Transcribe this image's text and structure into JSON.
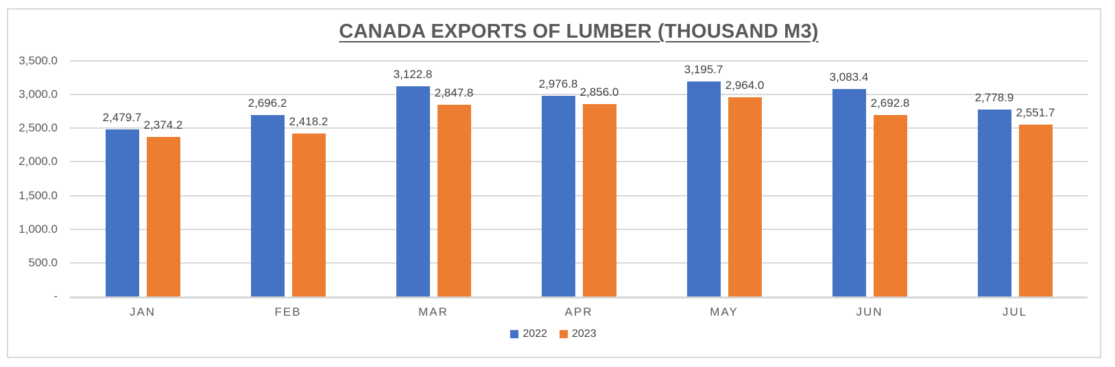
{
  "chart_data": {
    "type": "bar",
    "title": "CANADA EXPORTS OF LUMBER (THOUSAND M3)",
    "categories": [
      "JAN",
      "FEB",
      "MAR",
      "APR",
      "MAY",
      "JUN",
      "JUL"
    ],
    "series": [
      {
        "name": "2022",
        "color": "#4472C4",
        "values": [
          2479.7,
          2696.2,
          3122.8,
          2976.8,
          3195.7,
          3083.4,
          2778.9
        ],
        "labels": [
          "2,479.7",
          "2,696.2",
          "3,122.8",
          "2,976.8",
          "3,195.7",
          "3,083.4",
          "2,778.9"
        ]
      },
      {
        "name": "2023",
        "color": "#ED7D31",
        "values": [
          2374.2,
          2418.2,
          2847.8,
          2856.0,
          2964.0,
          2692.8,
          2551.7
        ],
        "labels": [
          "2,374.2",
          "2,418.2",
          "2,847.8",
          "2,856.0",
          "2,964.0",
          "2,692.8",
          "2,551.7"
        ]
      }
    ],
    "y_axis": {
      "min": 0,
      "max": 3500,
      "step": 500,
      "tick_labels_bottom_up": [
        "-",
        "500.0",
        "1,000.0",
        "1,500.0",
        "2,000.0",
        "2,500.0",
        "3,000.0",
        "3,500.0"
      ]
    },
    "legend": {
      "position": "bottom",
      "entries": [
        "2022",
        "2023"
      ]
    },
    "grid": true,
    "colors": {
      "grid": "#D9D9D9",
      "axis_line": "#D6D6D6",
      "frame_border": "#D9D9D9",
      "title_text": "#595959",
      "axis_text": "#595959",
      "value_label_text": "#404040"
    }
  }
}
